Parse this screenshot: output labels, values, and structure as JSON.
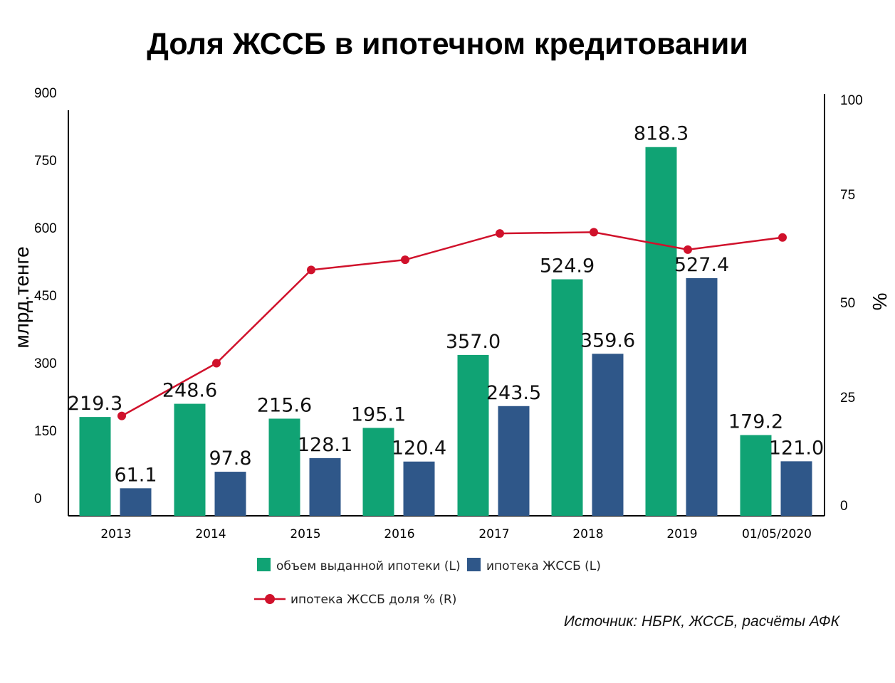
{
  "chart_data": {
    "type": "bar",
    "title": "Доля ЖССБ в ипотечном кредитовании",
    "categories": [
      "2013",
      "2014",
      "2015",
      "2016",
      "2017",
      "2018",
      "2019",
      "01/05/2020"
    ],
    "series": [
      {
        "name": "объем выданной ипотеки (L)",
        "type": "bar",
        "axis": "left",
        "color": "#10a374",
        "values": [
          219.3,
          248.6,
          215.6,
          195.1,
          357.0,
          524.9,
          818.3,
          179.2
        ],
        "labels": [
          "219.3",
          "248.6",
          "215.6",
          "195.1",
          "357.0",
          "524.9",
          "818.3",
          "179.2"
        ]
      },
      {
        "name": "ипотека ЖССБ (L)",
        "type": "bar",
        "axis": "left",
        "color": "#2f5789",
        "values": [
          61.1,
          97.8,
          128.1,
          120.4,
          243.5,
          359.6,
          527.4,
          121.0
        ],
        "labels": [
          "61.1",
          "97.8",
          "128.1",
          "120.4",
          "243.5",
          "359.6",
          "527.4",
          "121.0"
        ]
      },
      {
        "name": "ипотека ЖССБ доля % (R)",
        "type": "line",
        "axis": "right",
        "color": "#d0112b",
        "values": [
          22.0,
          35.0,
          58.0,
          60.5,
          67.0,
          67.3,
          63.0,
          66.0
        ]
      }
    ],
    "ylabel": "млрд.тенге",
    "y2label": "%",
    "ylim": [
      0,
      900
    ],
    "y2lim": [
      0,
      100
    ],
    "yticks": [
      "0",
      "150",
      "300",
      "450",
      "600",
      "750",
      "900"
    ],
    "y2ticks": [
      "0",
      "25",
      "50",
      "75",
      "100"
    ],
    "grid": false,
    "legend_position": "bottom"
  },
  "source_note": "Источник: НБРК, ЖССБ, расчёты АФК"
}
